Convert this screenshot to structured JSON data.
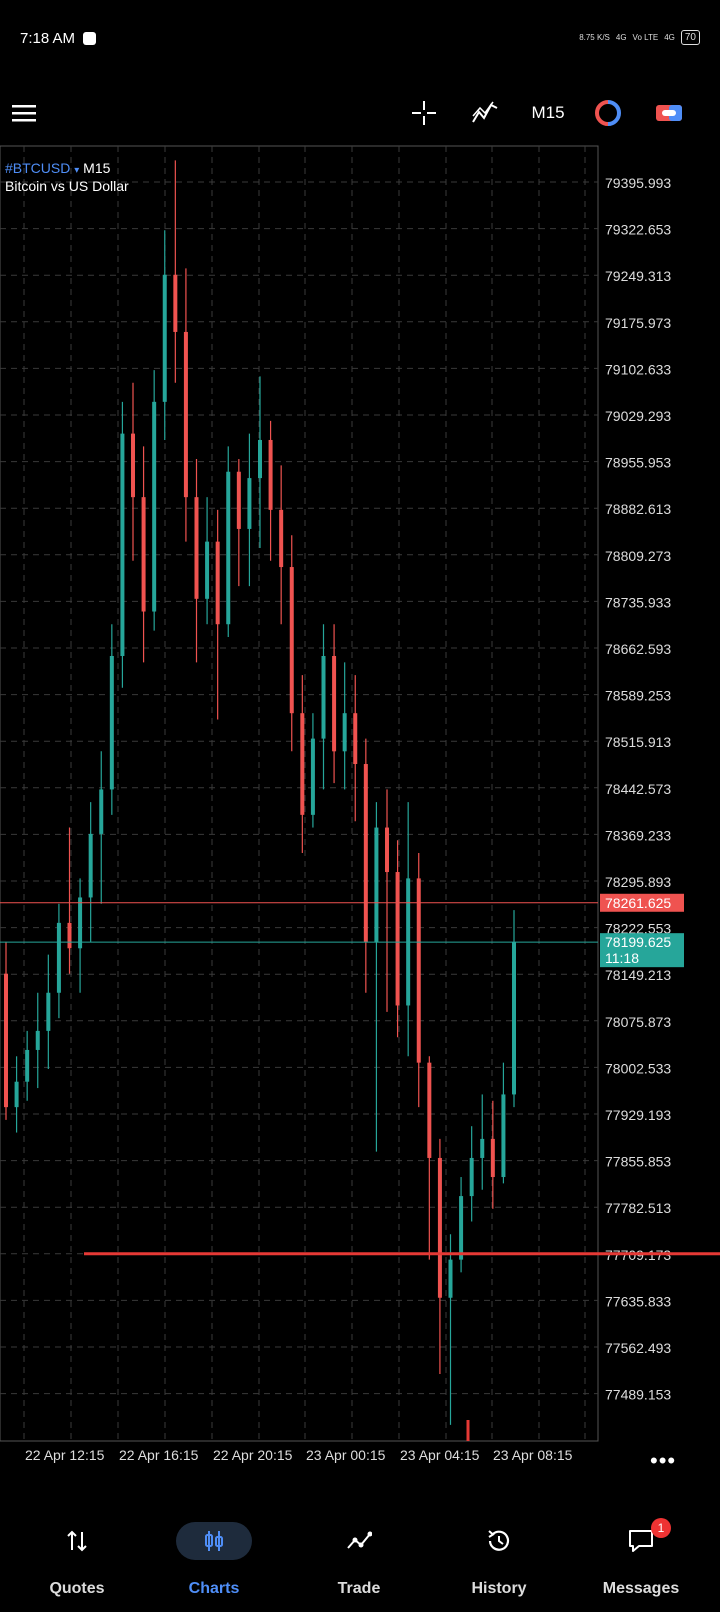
{
  "status": {
    "time": "7:18 AM",
    "net_speed": "8.75 K/S",
    "signal_1": "4G",
    "volte": "Vo LTE",
    "signal_2": "4G",
    "battery": "70"
  },
  "toolbar": {
    "menu_icon": "hamburger-icon",
    "crosshair_icon": "crosshair-icon",
    "indicators_icon": "indicators-icon",
    "timeframe": "M15",
    "trade_icon": "one-click-trade-icon",
    "object_icon": "objects-icon"
  },
  "symbol": {
    "name": "#BTCUSD",
    "arrow": "▾",
    "timeframe": "M15",
    "description": "Bitcoin vs US Dollar"
  },
  "chart_data": {
    "type": "candlestick",
    "colors": {
      "bull": "#26a69a",
      "bear": "#ef5350",
      "bid": "#ef5350",
      "line": "#e53935"
    },
    "y_ticks": [
      "79395.993",
      "79322.653",
      "79249.313",
      "79175.973",
      "79102.633",
      "79029.293",
      "78955.953",
      "78882.613",
      "78809.273",
      "78735.933",
      "78662.593",
      "78589.253",
      "78515.913",
      "78442.573",
      "78369.233",
      "78295.893",
      "78222.553",
      "78149.213",
      "78075.873",
      "78002.533",
      "77929.193",
      "77855.853",
      "77782.513",
      "77709.173",
      "77635.833",
      "77562.493",
      "77489.153"
    ],
    "x_ticks": [
      "22 Apr 12:15",
      "22 Apr 16:15",
      "22 Apr 20:15",
      "23 Apr 00:15",
      "23 Apr 04:15",
      "23 Apr 08:15"
    ],
    "ask_price": "78261.625",
    "bid_price": "78199.625",
    "bar_timer": "11:18",
    "horizontal_line": 77709.173,
    "candles": [
      [
        78150,
        78200,
        77920,
        77940
      ],
      [
        77940,
        78020,
        77900,
        77980
      ],
      [
        77980,
        78060,
        77950,
        78030
      ],
      [
        78030,
        78120,
        77970,
        78060
      ],
      [
        78060,
        78180,
        78000,
        78120
      ],
      [
        78120,
        78260,
        78080,
        78230
      ],
      [
        78230,
        78380,
        78150,
        78190
      ],
      [
        78190,
        78300,
        78120,
        78270
      ],
      [
        78270,
        78420,
        78200,
        78370
      ],
      [
        78370,
        78500,
        78260,
        78440
      ],
      [
        78440,
        78700,
        78400,
        78650
      ],
      [
        78650,
        79050,
        78600,
        79000
      ],
      [
        79000,
        79080,
        78800,
        78900
      ],
      [
        78900,
        78980,
        78640,
        78720
      ],
      [
        78720,
        79100,
        78690,
        79050
      ],
      [
        79050,
        79320,
        78990,
        79250
      ],
      [
        79250,
        79430,
        79080,
        79160
      ],
      [
        79160,
        79260,
        78830,
        78900
      ],
      [
        78900,
        78960,
        78640,
        78740
      ],
      [
        78740,
        78900,
        78700,
        78830
      ],
      [
        78830,
        78880,
        78550,
        78700
      ],
      [
        78700,
        78980,
        78680,
        78940
      ],
      [
        78940,
        78960,
        78760,
        78850
      ],
      [
        78850,
        79000,
        78760,
        78930
      ],
      [
        78930,
        79090,
        78820,
        78990
      ],
      [
        78990,
        79020,
        78800,
        78880
      ],
      [
        78880,
        78950,
        78700,
        78790
      ],
      [
        78790,
        78840,
        78500,
        78560
      ],
      [
        78560,
        78620,
        78340,
        78400
      ],
      [
        78400,
        78560,
        78380,
        78520
      ],
      [
        78520,
        78700,
        78440,
        78650
      ],
      [
        78650,
        78700,
        78450,
        78500
      ],
      [
        78500,
        78640,
        78440,
        78560
      ],
      [
        78560,
        78620,
        78390,
        78480
      ],
      [
        78480,
        78520,
        78120,
        78200
      ],
      [
        78200,
        78420,
        77870,
        78380
      ],
      [
        78380,
        78440,
        78090,
        78310
      ],
      [
        78310,
        78360,
        78050,
        78100
      ],
      [
        78100,
        78420,
        78020,
        78300
      ],
      [
        78300,
        78340,
        77940,
        78010
      ],
      [
        78010,
        78020,
        77700,
        77860
      ],
      [
        77860,
        77890,
        77520,
        77640
      ],
      [
        77640,
        77740,
        77440,
        77700
      ],
      [
        77700,
        77830,
        77680,
        77800
      ],
      [
        77800,
        77910,
        77760,
        77860
      ],
      [
        77860,
        77960,
        77810,
        77890
      ],
      [
        77890,
        77950,
        77780,
        77830
      ],
      [
        77830,
        78010,
        77820,
        77960
      ],
      [
        77960,
        78250,
        77940,
        78200
      ]
    ]
  },
  "nav": {
    "quotes": "Quotes",
    "charts": "Charts",
    "trade": "Trade",
    "history": "History",
    "messages": "Messages",
    "messages_badge": "1"
  },
  "more": "•••"
}
